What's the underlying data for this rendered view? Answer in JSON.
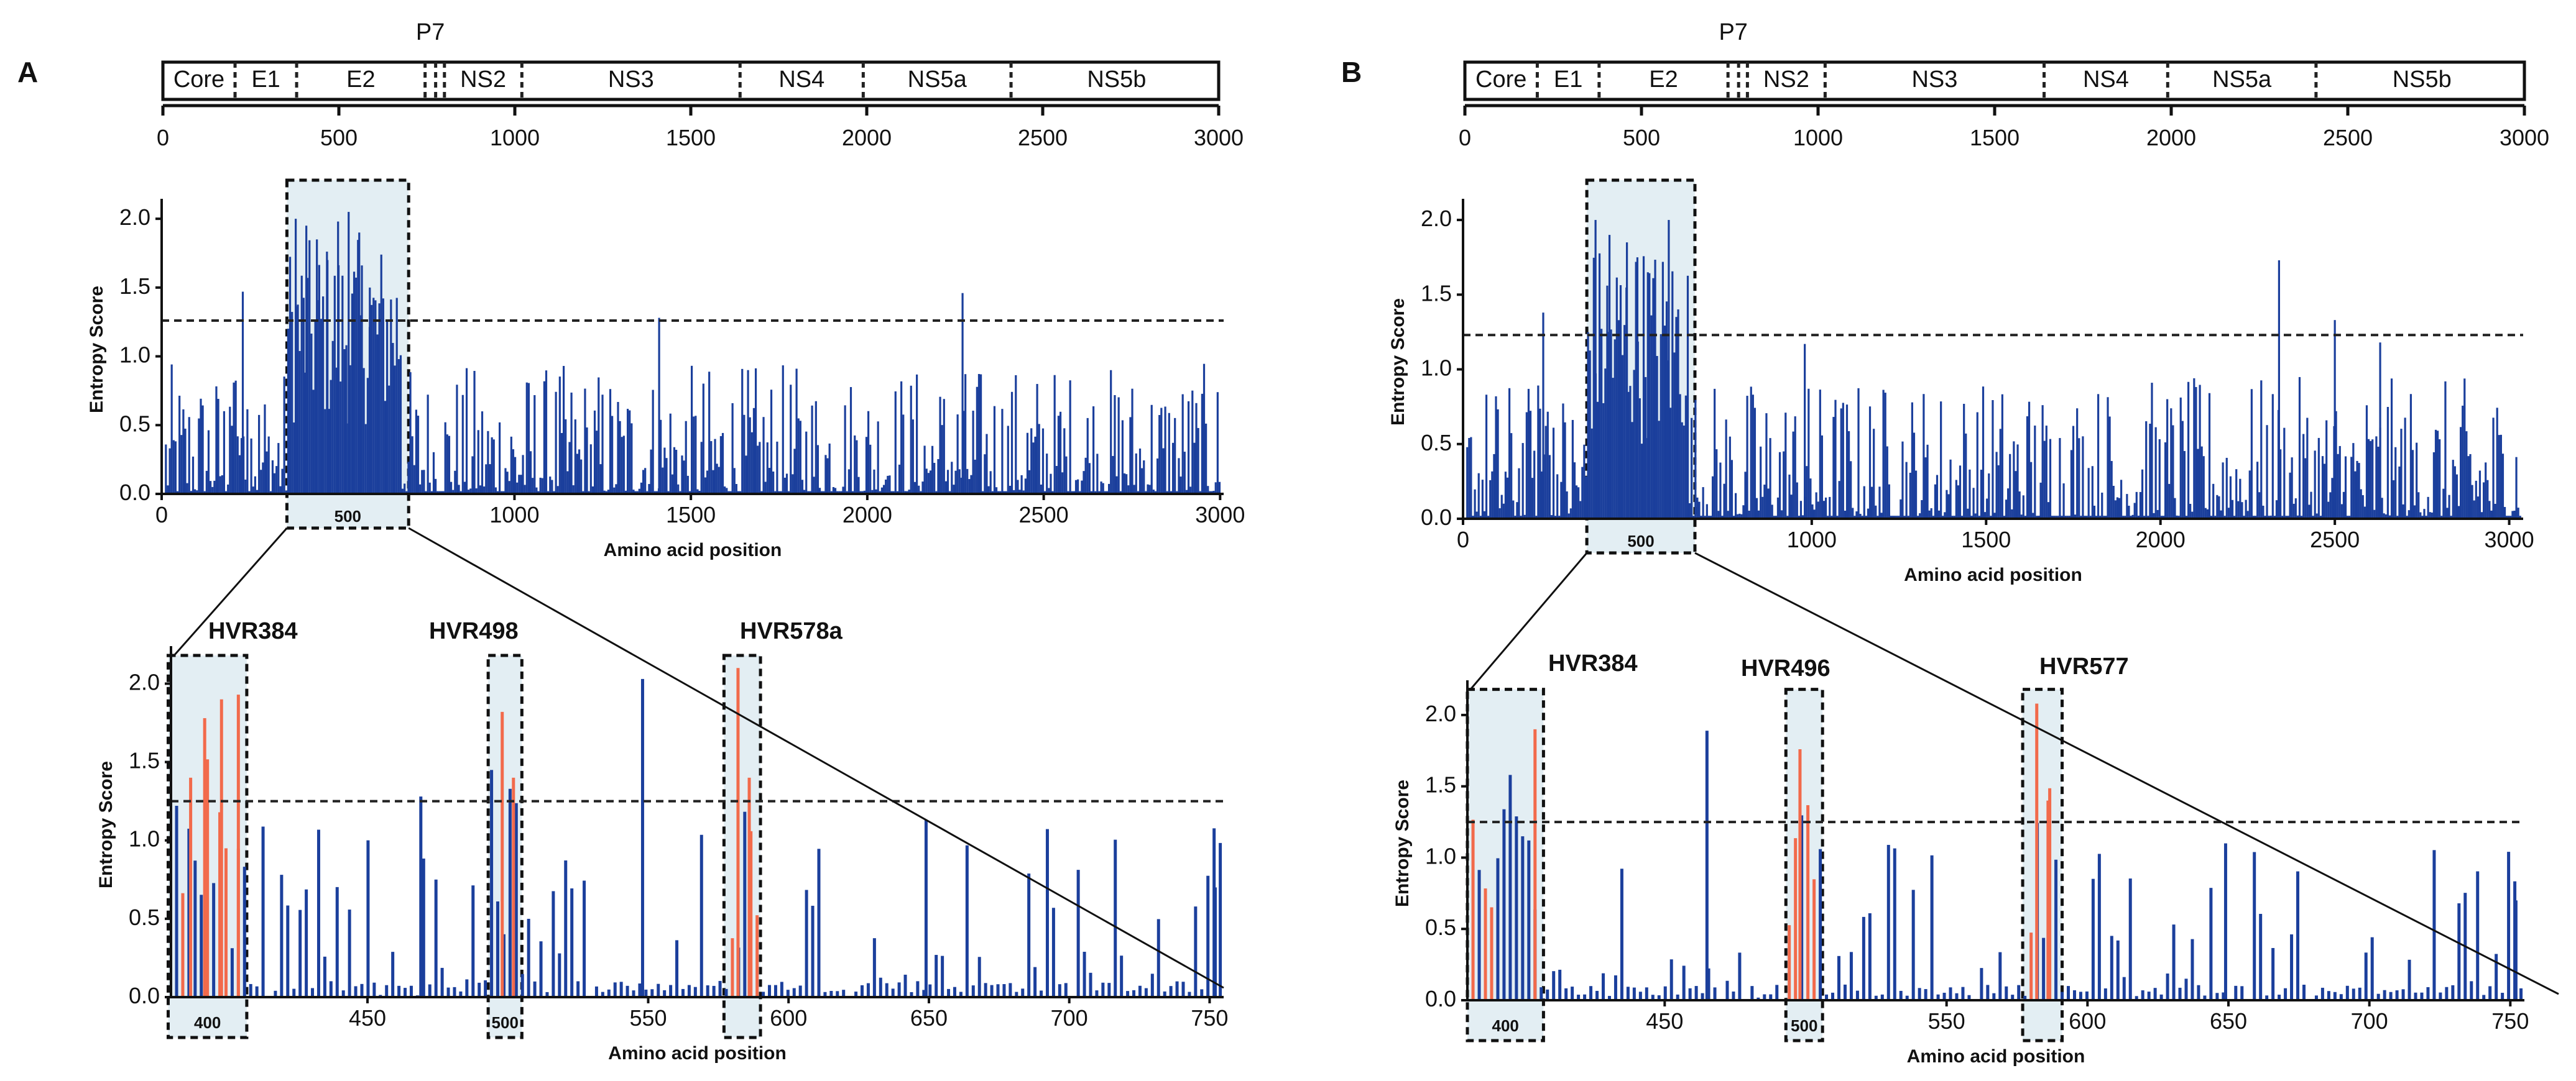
{
  "figure": {
    "colors": {
      "blue": "#1b3f9c",
      "orange": "#f26a4b",
      "shade": "#e3eef3",
      "dash": "#222222",
      "line": "#111111"
    },
    "genome_ticks": [
      "0",
      "500",
      "1000",
      "1500",
      "2000",
      "2500",
      "3000"
    ],
    "genes": [
      "Core",
      "E1",
      "E2",
      "NS2",
      "NS3",
      "NS4",
      "NS5a",
      "NS5b"
    ],
    "p7_label": "P7"
  },
  "chart_data": [
    {
      "panel": "A",
      "type": "bar",
      "subplot": "overview",
      "xlabel": "Amino acid position",
      "ylabel": "Entropy Score",
      "xlim": [
        0,
        3010
      ],
      "ylim": [
        0,
        2.1
      ],
      "xticks": [
        "0",
        "500",
        "1000",
        "1500",
        "2000",
        "2500",
        "3000"
      ],
      "yticks": [
        "0.0",
        "0.5",
        "1.0",
        "1.5",
        "2.0"
      ],
      "threshold": 1.26,
      "zoom_region": [
        355,
        700
      ],
      "zoom_tick_label": "500",
      "peaks": [
        [
          230,
          1.47
        ],
        [
          380,
          2.0
        ],
        [
          410,
          1.95
        ],
        [
          440,
          1.85
        ],
        [
          470,
          1.7
        ],
        [
          500,
          1.98
        ],
        [
          530,
          2.05
        ],
        [
          560,
          1.9
        ],
        [
          590,
          1.5
        ],
        [
          1410,
          1.28
        ],
        [
          2270,
          1.46
        ]
      ]
    },
    {
      "panel": "A",
      "type": "bar",
      "subplot": "zoom",
      "xlabel": "Amino acid position",
      "ylabel": "Entropy Score",
      "xlim": [
        380,
        755
      ],
      "ylim": [
        0,
        2.2
      ],
      "xticks": [
        "400",
        "450",
        "500",
        "550",
        "600",
        "650",
        "700",
        "750"
      ],
      "yticks": [
        "0.0",
        "0.5",
        "1.0",
        "1.5",
        "2.0"
      ],
      "threshold": 1.25,
      "hvr": [
        {
          "label": "HVR384",
          "start": 379,
          "end": 407,
          "tick": "400"
        },
        {
          "label": "HVR498",
          "start": 493,
          "end": 505,
          "tick": "500"
        },
        {
          "label": "HVR578a",
          "start": 577,
          "end": 590,
          "tick": ""
        }
      ],
      "peaks": [
        [
          387,
          1.4
        ],
        [
          392,
          1.78
        ],
        [
          398,
          1.9
        ],
        [
          404,
          1.93
        ],
        [
          469,
          1.28
        ],
        [
          498,
          1.82
        ],
        [
          502,
          1.4
        ],
        [
          548,
          2.03
        ],
        [
          582,
          2.1
        ],
        [
          586,
          1.4
        ],
        [
          649,
          1.13
        ],
        [
          752,
          0.7
        ]
      ]
    },
    {
      "panel": "B",
      "type": "bar",
      "subplot": "overview",
      "xlabel": "Amino acid position",
      "ylabel": "Entropy Score",
      "xlim": [
        0,
        3040
      ],
      "ylim": [
        0,
        2.1
      ],
      "xticks": [
        "0",
        "500",
        "1000",
        "1500",
        "2000",
        "2500",
        "3000"
      ],
      "yticks": [
        "0.0",
        "0.5",
        "1.0",
        "1.5",
        "2.0"
      ],
      "threshold": 1.23,
      "zoom_region": [
        355,
        665
      ],
      "zoom_tick_label": "500",
      "peaks": [
        [
          230,
          1.38
        ],
        [
          380,
          2.0
        ],
        [
          420,
          1.9
        ],
        [
          470,
          1.85
        ],
        [
          500,
          1.75
        ],
        [
          530,
          1.65
        ],
        [
          590,
          2.0
        ],
        [
          980,
          1.17
        ],
        [
          2340,
          1.73
        ],
        [
          2500,
          1.33
        ],
        [
          2630,
          1.18
        ]
      ]
    },
    {
      "panel": "B",
      "type": "bar",
      "subplot": "zoom",
      "xlabel": "Amino acid position",
      "ylabel": "Entropy Score",
      "xlim": [
        380,
        755
      ],
      "ylim": [
        0,
        2.2
      ],
      "xticks": [
        "400",
        "450",
        "500",
        "550",
        "600",
        "650",
        "700",
        "750"
      ],
      "yticks": [
        "0.0",
        "0.5",
        "1.0",
        "1.5",
        "2.0"
      ],
      "threshold": 1.25,
      "hvr": [
        {
          "label": "HVR384",
          "start": 380,
          "end": 407,
          "tick": "400"
        },
        {
          "label": "HVR496",
          "start": 493,
          "end": 506,
          "tick": "500"
        },
        {
          "label": "HVR577",
          "start": 577,
          "end": 591,
          "tick": ""
        }
      ],
      "peaks": [
        [
          404,
          1.9
        ],
        [
          465,
          1.89
        ],
        [
          498,
          1.76
        ],
        [
          582,
          2.08
        ],
        [
          586,
          1.4
        ],
        [
          649,
          1.1
        ],
        [
          752,
          0.7
        ]
      ]
    }
  ]
}
